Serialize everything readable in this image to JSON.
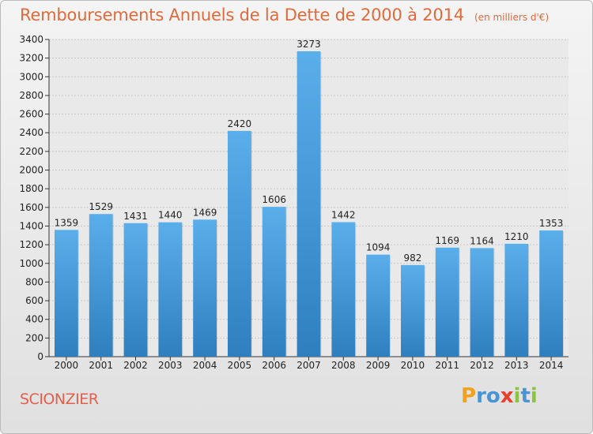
{
  "chart_data": {
    "type": "bar",
    "title": "Remboursements Annuels de la Dette de 2000 à 2014",
    "subtitle": "(en milliers d'€)",
    "categories": [
      "2000",
      "2001",
      "2002",
      "2003",
      "2004",
      "2005",
      "2006",
      "2007",
      "2008",
      "2009",
      "2010",
      "2011",
      "2012",
      "2013",
      "2014"
    ],
    "values": [
      1359,
      1529,
      1431,
      1440,
      1469,
      2420,
      1606,
      3273,
      1442,
      1094,
      982,
      1169,
      1164,
      1210,
      1353
    ],
    "ylim": [
      0,
      3400
    ],
    "yticks": [
      0,
      200,
      400,
      600,
      800,
      1000,
      1200,
      1400,
      1600,
      1800,
      2000,
      2200,
      2400,
      2600,
      2800,
      3000,
      3200,
      3400
    ],
    "grid": true,
    "bar_color": "#4a9fdf"
  },
  "footer": {
    "place": "SCIONZIER"
  },
  "brand": {
    "letters": [
      "P",
      "r",
      "o",
      "x",
      "i",
      "t",
      "i"
    ],
    "colors": [
      "#f0a21c",
      "#4b94d4",
      "#4b94d4",
      "#e8402c",
      "#8cc43c",
      "#4b94d4",
      "#8cc43c"
    ]
  }
}
